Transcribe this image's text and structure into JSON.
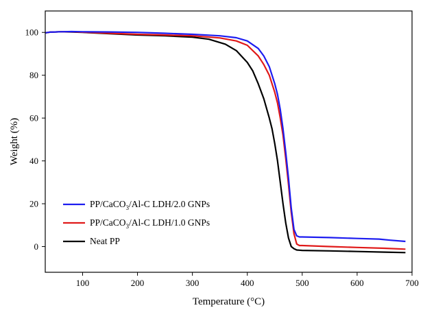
{
  "chart_data": {
    "type": "line",
    "title": "",
    "xlabel": "Temperature (°C)",
    "ylabel": "Weight (%)",
    "xlim": [
      32,
      700
    ],
    "ylim": [
      -12,
      110
    ],
    "xticks": [
      100,
      200,
      300,
      400,
      500,
      600,
      700
    ],
    "yticks": [
      0,
      20,
      40,
      60,
      80,
      100
    ],
    "grid": false,
    "legend_position": "bottom-left",
    "series": [
      {
        "name": "PP/CaCO3/Al-C LDH/2.0 GNPs",
        "legend": {
          "pre": "PP/CaCO",
          "sub": "3",
          "post": "/Al-C LDH/2.0 GNPs"
        },
        "color": "#1c1cf0",
        "x": [
          32,
          40,
          60,
          80,
          100,
          150,
          200,
          250,
          300,
          350,
          380,
          400,
          420,
          430,
          440,
          450,
          455,
          460,
          465,
          470,
          475,
          480,
          485,
          490,
          495,
          500,
          550,
          600,
          640,
          660,
          688
        ],
        "y": [
          99.8,
          100.1,
          100.3,
          100.4,
          100.3,
          100.2,
          100.0,
          99.6,
          99.1,
          98.4,
          97.5,
          96.0,
          92.5,
          89.0,
          84.0,
          76.0,
          71.0,
          64.0,
          55.0,
          44.0,
          32.0,
          18.0,
          8.0,
          5.0,
          4.5,
          4.5,
          4.2,
          3.8,
          3.5,
          3.0,
          2.4
        ]
      },
      {
        "name": "PP/CaCO3/Al-C LDH/1.0 GNPs",
        "legend": {
          "pre": "PP/CaCO",
          "sub": "3",
          "post": "/Al-C LDH/1.0 GNPs"
        },
        "color": "#e01919",
        "x": [
          32,
          40,
          60,
          80,
          100,
          150,
          200,
          250,
          300,
          350,
          380,
          400,
          420,
          430,
          440,
          450,
          455,
          460,
          465,
          470,
          475,
          480,
          485,
          490,
          495,
          500,
          550,
          600,
          650,
          688
        ],
        "y": [
          99.8,
          100.1,
          100.3,
          100.3,
          100.1,
          99.6,
          99.1,
          98.8,
          98.4,
          97.4,
          96.0,
          94.0,
          89.0,
          85.0,
          80.0,
          72.0,
          67.0,
          60.0,
          52.0,
          41.0,
          29.0,
          16.0,
          6.0,
          1.2,
          0.5,
          0.5,
          0.0,
          -0.4,
          -0.8,
          -1.2
        ]
      },
      {
        "name": "Neat PP",
        "legend": {
          "pre": "Neat PP",
          "sub": "",
          "post": ""
        },
        "color": "#000000",
        "x": [
          32,
          40,
          60,
          80,
          100,
          150,
          200,
          250,
          300,
          330,
          360,
          380,
          400,
          410,
          420,
          430,
          440,
          445,
          450,
          455,
          460,
          465,
          470,
          475,
          480,
          485,
          490,
          495,
          500,
          550,
          600,
          650,
          688
        ],
        "y": [
          99.8,
          100.1,
          100.3,
          100.2,
          100.0,
          99.4,
          98.8,
          98.4,
          97.8,
          96.8,
          94.5,
          91.5,
          86.0,
          82.0,
          76.0,
          69.0,
          60.0,
          55.0,
          48.0,
          40.0,
          30.0,
          20.0,
          11.0,
          4.0,
          0.0,
          -1.0,
          -1.6,
          -1.7,
          -1.8,
          -2.0,
          -2.3,
          -2.6,
          -2.8
        ]
      }
    ]
  }
}
